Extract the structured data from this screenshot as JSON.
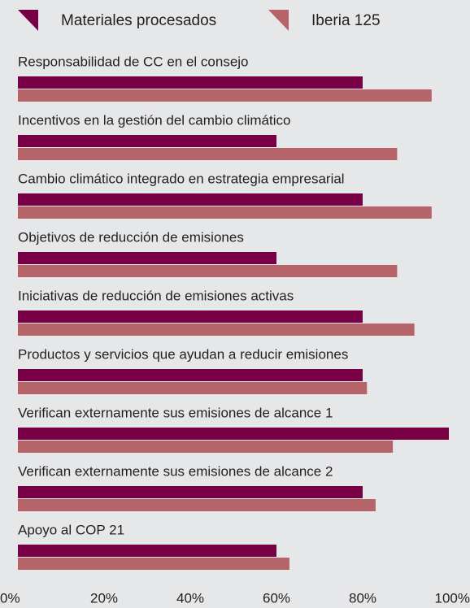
{
  "chart_data": {
    "type": "bar",
    "orientation": "horizontal",
    "categories": [
      "Responsabilidad de CC en el consejo",
      "Incentivos en la gestión del cambio climático",
      "Cambio climático integrado en estrategia empresarial",
      "Objetivos de reducción de emisiones",
      "Iniciativas de reducción de emisiones activas",
      "Productos y servicios que ayudan a reducir emisiones",
      "Verifican externamente sus emisiones de alcance 1",
      "Verifican externamente sus emisiones de alcance 2",
      "Apoyo al COP 21"
    ],
    "series": [
      {
        "name": "Materiales procesados",
        "color": "#7a0046",
        "values": [
          80,
          60,
          80,
          60,
          80,
          80,
          100,
          80,
          60
        ]
      },
      {
        "name": "Iberia 125",
        "color": "#b5646a",
        "values": [
          96,
          88,
          96,
          88,
          92,
          81,
          87,
          83,
          63
        ]
      }
    ],
    "xlim": [
      0,
      100
    ],
    "xticks": [
      {
        "value": 0,
        "label": "0%"
      },
      {
        "value": 20,
        "label": "20%"
      },
      {
        "value": 40,
        "label": "40%"
      },
      {
        "value": 60,
        "label": "60%"
      },
      {
        "value": 80,
        "label": "80%"
      },
      {
        "value": 100,
        "label": "100%"
      }
    ],
    "legend": "top"
  }
}
